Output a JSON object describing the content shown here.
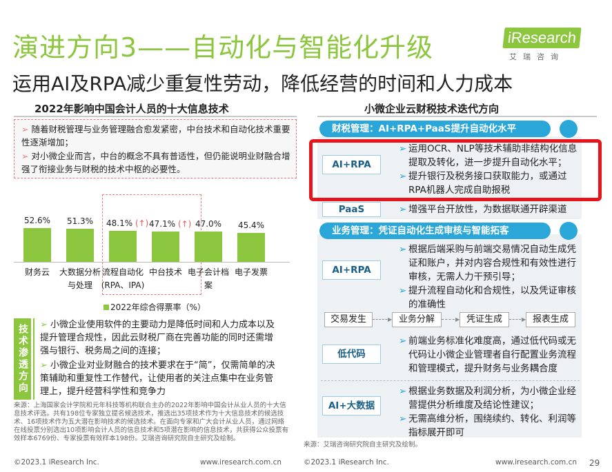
{
  "header": {
    "title": "演进方向3——自动化与智能化升级",
    "subtitle": "运用AI及RPA减少重复性劳动，降低经营的时间和人力成本",
    "logo_text": "iResearch",
    "logo_cn": "艾瑞咨询"
  },
  "left": {
    "section_title": "2022年影响中国会计人员的十大信息技术",
    "bullets": [
      "随着财税管理与业务管理融合愈发紧密，中台技术和自动化技术重要性逐渐增加；",
      "对小微企业而言，中台的概念不具有普适性，但仍能说明业财融合增强了衔接业务与财税的技术中枢的必要性。"
    ],
    "legend": "2022年综合得票率（%）",
    "penetration_label": "技术渗透方向",
    "penetration_bullets": [
      "小微企业使用软件的主要动力是降低时间和人力成本以及提升管理合规性，因此云财税厂商在完善功能的同时还需增强与银行、税务局之间的连接；",
      "小微企业对业财融合的技术要求在于“简”，仅需简单的决策辅助和重复性工作替代，让使用者的关注点集中在业务管理上，提升经营科学性和竞争力"
    ],
    "source": "来源：上海国家会计学院和元年科技等机构联合主办的2022年影响中国会计从业人员的十大信息技术评选。共有198位专家独立提名候选技术，推选出35项技术作为十大信息技术的候选技术、16项技术作为五大潜在影响技术的候选技术。在面向专家和广大会计从业人员，通过网络在线投票分别选出10项影响会计人员的信息技术和5项潜在影响的信息技术，共获得公众投票有效样本6769份、专家投票有效样本198份。艾瑞咨询研究院自主研究及绘制。",
    "footer_left": "©2023.1 iResearch Inc.",
    "footer_right": "www.iresearch.com.cn"
  },
  "chart_data": {
    "type": "bar",
    "categories": [
      "财务云",
      "大数据分析与处理",
      "流程自动化(RPA、IPA)",
      "中台技术",
      "电子会计档案",
      "电子发票"
    ],
    "category_lines": [
      [
        "财务云"
      ],
      [
        "大数据分析",
        "与处理"
      ],
      [
        "流程自动化",
        "(RPA、IPA)"
      ],
      [
        "中台技术"
      ],
      [
        "电子会计档",
        "案"
      ],
      [
        "电子发票"
      ]
    ],
    "values": [
      52.6,
      51.3,
      48.1,
      47.1,
      47.0,
      45.4
    ],
    "value_labels": [
      "52.6%",
      "51.3%",
      "48.1%",
      "47.1%",
      "47.0%",
      "45.4%"
    ],
    "up_marks": [
      "",
      "",
      "(↑)",
      "(↑)",
      "",
      ""
    ],
    "legend": "2022年综合得票率（%）",
    "color": "#8cc63f"
  },
  "right": {
    "section_title": "小微企业云财税技术迭代方向",
    "pill1": "财税管理：AI+RPA+PaaS提升自动化水平",
    "pill2": "业务管理：凭证自动化生成审核与智能拓客",
    "rows": [
      {
        "tag": "AI+RPA",
        "lines": [
          "运用OCR、NLP等技术辅助非结构化信息提取及转化，进一步提升自动化水平；",
          "提升银行及税务接口获取能力，或通过RPA机器人完成自助报税"
        ]
      },
      {
        "tag": "PaaS",
        "lines": [
          "增强平台开放性，为数据联通开辟渠道"
        ]
      },
      {
        "tag": "AI+RPA",
        "lines": [
          "根据后端采购与前端交易情况自动生成凭证和账户，并对内容合规性和有效性进行审核，无需人力干预引导；",
          "提升流程自动化和合规性，以及凭证审核的准确性"
        ]
      },
      {
        "tag": "低代码",
        "lines": [
          "前端业务标准化难度高，通过低代码或无代码让小微企业管理者自行配置业务流程和管理模式，提升财务与业务耦合度"
        ]
      },
      {
        "tag": "AI+大数据",
        "lines": [
          "根据业务数据及利润分析，为小微企业经营提供分析维度及结论性建议；",
          "无需高维分析，围绕续约、转化、利润等指标展开即可"
        ]
      }
    ],
    "flow": [
      "交易发生",
      "业务分解",
      "凭证生成",
      "报表生成"
    ],
    "source": "来源：艾瑞咨询研究院自主研究及绘制。",
    "footer_left": "©2023.1 iResearch Inc.",
    "footer_right": "www.iresearch.com.cn",
    "page_number": "29"
  },
  "colors": {
    "green": "#8cc63f",
    "blue": "#2aa6d9",
    "red_highlight": "#e8141b"
  }
}
